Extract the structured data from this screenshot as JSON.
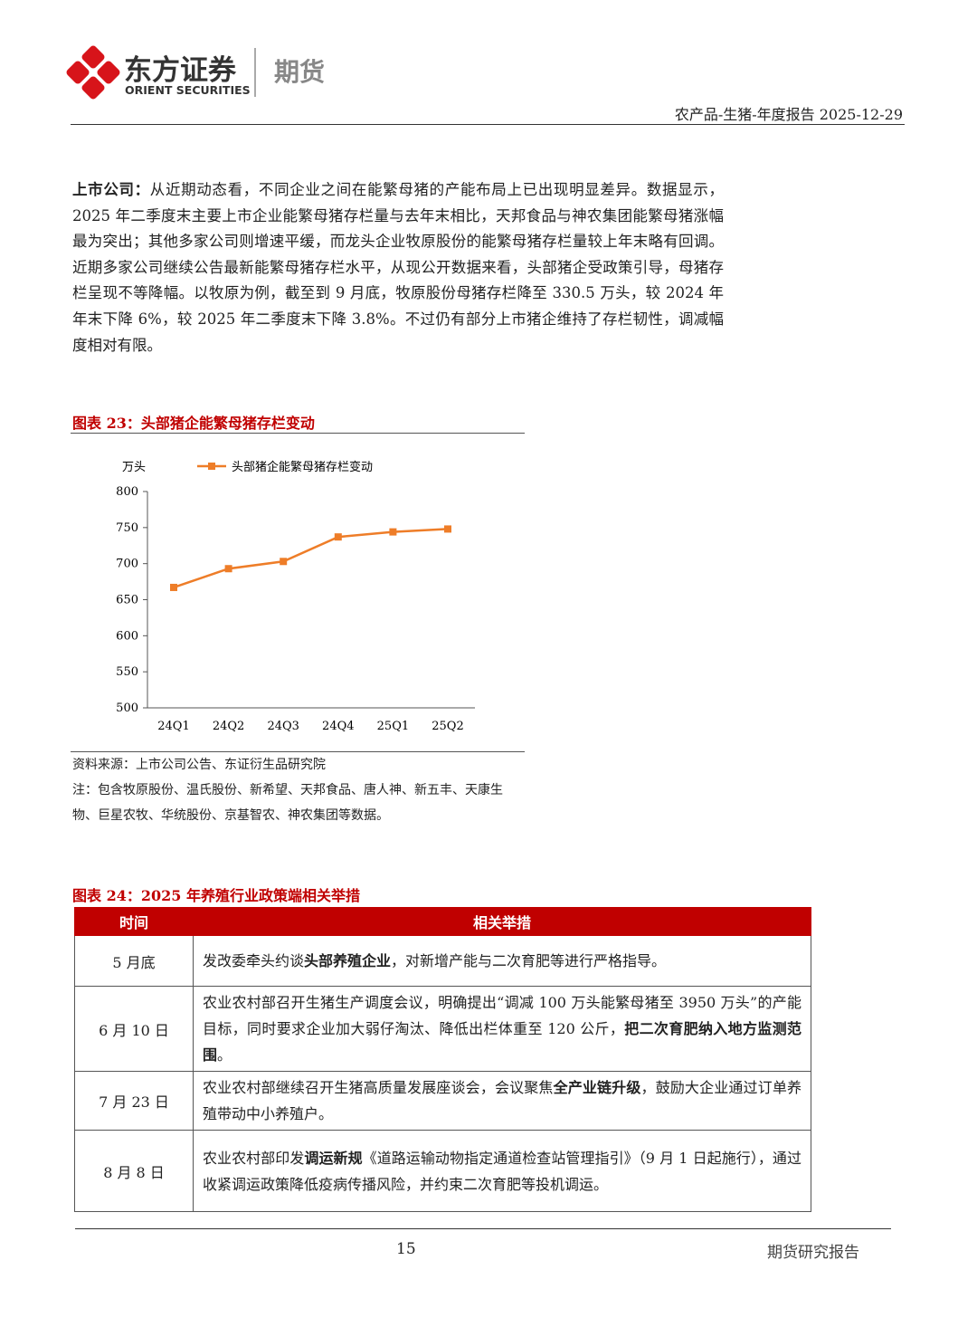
{
  "header": {
    "brand_cn": "东方证券",
    "brand_en": "ORIENT SECURITIES",
    "division": "期货",
    "report_line": "农产品-生猪-年度报告 2025-12-29"
  },
  "body": {
    "runs": [
      {
        "text": "上市公司：",
        "bold": true
      },
      {
        "text": "从近期动态看，不同企业之间在能繁母猪的产能布局上已出现明显差异。数据显示，2025 年二季度末主要上市企业能繁母猪存栏量与去年末相比，天邦食品与神农集团能繁母猪涨幅最为突出；其他多家公司则增速平缓，而龙头企业牧原股份的能繁母猪存栏量较上年末略有回调。近期多家公司继续公告最新能繁母猪存栏水平，从现公开数据来看，头部猪企受政策引导，母猪存栏呈现不等降幅。以牧原为例，截至到 9 月底，牧原股份母猪存栏降至 330.5 万头，较 2024 年年末下降 6%，较 2025 年二季度末下降 3.8%。不过仍有部分上市猪企维持了存栏韧性，调减幅度相对有限。",
        "bold": false
      }
    ]
  },
  "figure23": {
    "title": "图表 23：头部猪企能繁母猪存栏变动",
    "source": "资料来源：上市公司公告、东证衍生品研究院",
    "note": "注：包含牧原股份、温氏股份、新希望、天邦食品、唐人神、新五丰、天康生物、巨星农牧、华统股份、京基智农、神农集团等数据。"
  },
  "chart_data": {
    "type": "line",
    "y_label": "万头",
    "categories": [
      "24Q1",
      "24Q2",
      "24Q3",
      "24Q4",
      "25Q1",
      "25Q2"
    ],
    "series": [
      {
        "name": "头部猪企能繁母猪存栏变动",
        "color": "#ee7d28",
        "values": [
          667,
          693,
          703,
          737,
          744,
          748
        ]
      }
    ],
    "ylim": [
      500,
      800
    ],
    "yticks": [
      500,
      550,
      600,
      650,
      700,
      750,
      800
    ],
    "legend": "top"
  },
  "figure24": {
    "title": "图表 24：2025 年养殖行业政策端相关举措",
    "table": {
      "header": [
        "时间",
        "相关举措"
      ],
      "rows": [
        {
          "time": "5 月底",
          "measures": [
            {
              "text": "发改委牵头约谈",
              "bold": false
            },
            {
              "text": "头部养殖企业",
              "bold": true
            },
            {
              "text": "，对新增产能与二次育肥等进行严格指导。",
              "bold": false
            }
          ]
        },
        {
          "time": "6 月 10 日",
          "measures": [
            {
              "text": "农业农村部召开生猪生产调度会议，明确提出“调减 100 万头能繁母猪至 3950 万头”的产能目标，同时要求企业加大弱仔淘汰、降低出栏体重至 120 公斤，",
              "bold": false
            },
            {
              "text": "把二次育肥纳入地方监测范围",
              "bold": true
            },
            {
              "text": "。",
              "bold": false
            }
          ]
        },
        {
          "time": "7 月 23 日",
          "measures": [
            {
              "text": "农业农村部继续召开生猪高质量发展座谈会，会议聚焦",
              "bold": false
            },
            {
              "text": "全产业链升级",
              "bold": true
            },
            {
              "text": "，鼓励大企业通过订单养殖带动中小养殖户。",
              "bold": false
            }
          ]
        },
        {
          "time": "8 月 8 日",
          "measures": [
            {
              "text": "农业农村部印发",
              "bold": false
            },
            {
              "text": "调运新规",
              "bold": true
            },
            {
              "text": "《道路运输动物指定通道检查站管理指引》（9 月 1 日起施行），通过收紧调运政策降低疫病传播风险，并约束二次育肥等投机调运。",
              "bold": false
            }
          ]
        }
      ]
    }
  },
  "footer": {
    "page": "15",
    "label": "期货研究报告"
  }
}
